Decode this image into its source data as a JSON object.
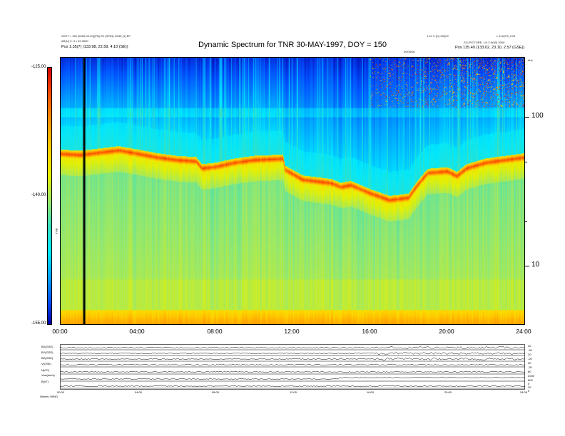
{
  "header": {
    "left_line1": "SCET = 150 (2000-02-20)(PN) E0 (SPIN) 10/35 (1) EP",
    "left_line2": "AR(U) 2: 3 x 29 0000",
    "left_line3": "Pos    1.35(7) (133.98, 22.59, 4.10 (SE))",
    "right_top1": "1.10 V (D) 20/(00",
    "right_top2": "L 3.3/(ST) 0.01",
    "right_line2": "SCLPICTURE: 1/4 3 E(00) 2000",
    "right_line3": "Pos    135.49 (133.02, 23.10, 2.57 (GSE))",
    "mid_tag": "00/09/06"
  },
  "chart_data": {
    "type": "heatmap",
    "title": "Dynamic Spectrum for TNR 30-MAY-1997, DOY = 150",
    "x_ticks": [
      "00:00",
      "04:00",
      "08:00",
      "12:00",
      "16:00",
      "20:00",
      "24:00"
    ],
    "x_range_hours": [
      0,
      24
    ],
    "y_scale": "log",
    "y_range_khz": [
      4,
      240
    ],
    "y_ticks": [
      "100",
      "10"
    ],
    "y_unit": "kHz",
    "colorbar": {
      "label": "TNR",
      "ticks": [
        "-125.00",
        "-140.00",
        "-155.00"
      ],
      "range": [
        -155,
        -125
      ]
    },
    "marker_line_hours": 1.2,
    "features": {
      "emission_band_khz": [
        [
          0.0,
          55
        ],
        [
          1.0,
          54
        ],
        [
          2.0,
          56
        ],
        [
          3.0,
          58
        ],
        [
          4.0,
          55
        ],
        [
          5.0,
          52
        ],
        [
          6.0,
          50
        ],
        [
          7.0,
          49
        ],
        [
          7.3,
          44
        ],
        [
          8.0,
          45
        ],
        [
          9.0,
          48
        ],
        [
          10.0,
          50
        ],
        [
          11.5,
          51
        ],
        [
          11.6,
          43
        ],
        [
          12.5,
          37
        ],
        [
          14.0,
          35
        ],
        [
          14.5,
          33
        ],
        [
          15.0,
          34
        ],
        [
          16.0,
          30
        ],
        [
          17.0,
          27
        ],
        [
          18.0,
          28
        ],
        [
          19.0,
          41
        ],
        [
          20.0,
          42
        ],
        [
          20.5,
          39
        ],
        [
          21.0,
          44
        ],
        [
          22.0,
          48
        ],
        [
          23.0,
          50
        ],
        [
          24.0,
          52
        ]
      ]
    }
  },
  "bottom_panels": {
    "left_labels": [
      "B(nT)",
      "BX(GSE)",
      "BY(GSE)",
      "BZ(GSE)",
      "V(GSE)",
      "N(CC)",
      "Vsw(km/s)"
    ],
    "right_labels": [
      "20",
      "-20",
      "20",
      "-20",
      "20",
      "-20",
      "80",
      "2000",
      "600",
      "0",
      "20",
      "0"
    ],
    "x_ticks": [
      "00:00",
      "04:00",
      "08:00",
      "12:00",
      "16:00",
      "20:00",
      "24:00"
    ],
    "footer": "Waves: WIND"
  }
}
